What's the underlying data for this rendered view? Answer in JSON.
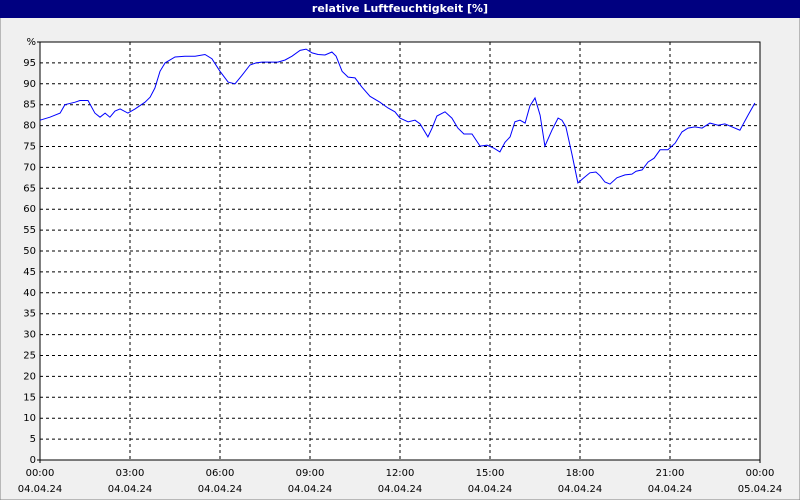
{
  "chart_data": {
    "type": "line",
    "title": "relative Luftfeuchtigkeit [%]",
    "xlim": [
      0,
      24
    ],
    "ylim": [
      0,
      100
    ],
    "grid": true,
    "xticks": [
      {
        "value": 0,
        "label": "00:00"
      },
      {
        "value": 3,
        "label": "03:00"
      },
      {
        "value": 6,
        "label": "06:00"
      },
      {
        "value": 9,
        "label": "09:00"
      },
      {
        "value": 12,
        "label": "12:00"
      },
      {
        "value": 15,
        "label": "15:00"
      },
      {
        "value": 18,
        "label": "18:00"
      },
      {
        "value": 21,
        "label": "21:00"
      },
      {
        "value": 24,
        "label": "00:00"
      }
    ],
    "xtick_dates": [
      "04.04.24",
      "04.04.24",
      "04.04.24",
      "04.04.24",
      "04.04.24",
      "04.04.24",
      "04.04.24",
      "04.04.24",
      "05.04.24"
    ],
    "yticks": [
      0,
      5,
      10,
      15,
      20,
      25,
      30,
      35,
      40,
      45,
      50,
      55,
      60,
      65,
      70,
      75,
      80,
      85,
      90,
      95,
      {
        "value": 100,
        "label": "%"
      }
    ],
    "series": [
      {
        "color": "#0000ff",
        "x": [
          0,
          0.33,
          0.67,
          0.83,
          1.17,
          1.33,
          1.6,
          1.83,
          2,
          2.17,
          2.33,
          2.5,
          2.67,
          2.93,
          3.17,
          3.5,
          3.67,
          3.83,
          4,
          4.17,
          4.5,
          4.83,
          5.17,
          5.5,
          5.73,
          6,
          6.27,
          6.5,
          6.73,
          7,
          7.2,
          7.4,
          7.67,
          7.93,
          8.17,
          8.4,
          8.67,
          8.87,
          9.07,
          9.27,
          9.5,
          9.73,
          9.87,
          10.07,
          10.27,
          10.5,
          10.73,
          11,
          11.33,
          11.6,
          11.83,
          12,
          12.27,
          12.5,
          12.67,
          12.93,
          13.07,
          13.23,
          13.5,
          13.73,
          13.93,
          14.13,
          14.4,
          14.67,
          14.9,
          15.13,
          15.33,
          15.5,
          15.67,
          15.83,
          16,
          16.17,
          16.33,
          16.5,
          16.67,
          16.83,
          17.07,
          17.27,
          17.4,
          17.53,
          17.73,
          17.93,
          18.13,
          18.33,
          18.53,
          18.67,
          18.83,
          19,
          19.23,
          19.5,
          19.73,
          19.87,
          20.07,
          20.27,
          20.47,
          20.67,
          20.93,
          21.17,
          21.4,
          21.6,
          21.83,
          22.07,
          22.33,
          22.6,
          22.83,
          23.07,
          23.33,
          23.6,
          23.83
        ],
        "values": [
          81.3,
          82,
          83,
          85,
          85.6,
          86,
          86,
          83,
          82,
          83,
          82,
          83.5,
          84,
          83,
          84,
          85.6,
          86.8,
          89,
          93,
          95,
          96.4,
          96.6,
          96.6,
          97,
          96,
          93,
          90.4,
          90,
          92,
          94.5,
          95,
          95.2,
          95.2,
          95.2,
          95.7,
          96.6,
          98,
          98.3,
          97.4,
          97,
          96.9,
          97.6,
          96.6,
          93,
          91.6,
          91.4,
          89.2,
          87,
          85.6,
          84.2,
          83.3,
          81.8,
          80.9,
          81.3,
          80.4,
          77.3,
          79.4,
          82.3,
          83.3,
          81.8,
          79.4,
          78,
          78,
          75.1,
          75.3,
          74.6,
          73.7,
          76,
          77.3,
          80.9,
          81.3,
          80.6,
          84.7,
          86.6,
          82.5,
          75.1,
          79,
          81.8,
          81.3,
          79.7,
          73.2,
          66.3,
          67.5,
          68.7,
          68.9,
          68,
          66.5,
          66,
          67.5,
          68.2,
          68.4,
          69.1,
          69.4,
          71.3,
          72.2,
          74.2,
          74.2,
          75.8,
          78.5,
          79.4,
          79.7,
          79.4,
          80.6,
          80.1,
          80.4,
          79.7,
          78.9,
          82.5,
          85.4
        ]
      }
    ]
  }
}
